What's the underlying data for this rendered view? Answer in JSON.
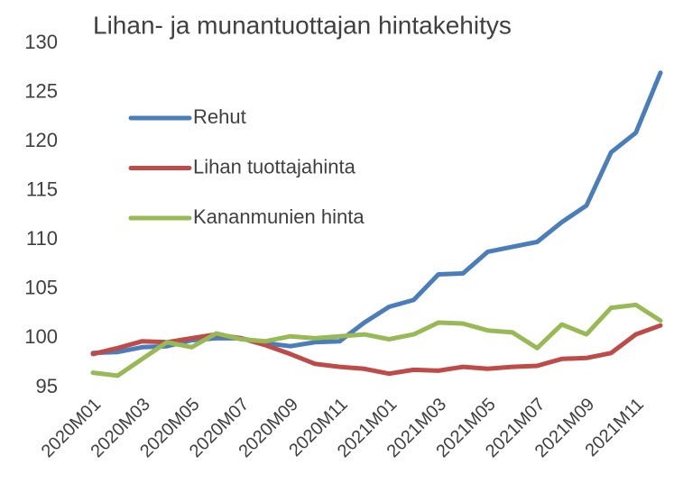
{
  "chart_data": {
    "type": "line",
    "title": "Lihan- ja munantuottajan hintakehitys",
    "categories": [
      "2020M01",
      null,
      "2020M03",
      null,
      "2020M05",
      null,
      "2020M07",
      null,
      "2020M09",
      null,
      "2020M11",
      null,
      "2021M01",
      null,
      "2021M03",
      null,
      "2021M05",
      null,
      "2021M07",
      null,
      "2021M09",
      null,
      "2021M11",
      null
    ],
    "series": [
      {
        "name": "Rehut",
        "color": "#4a7ebb",
        "values": [
          98.5,
          98.6,
          99.1,
          99.2,
          99.8,
          100.0,
          100.0,
          99.5,
          99.2,
          99.6,
          99.7,
          101.6,
          103.2,
          103.9,
          106.5,
          106.6,
          108.8,
          109.3,
          109.8,
          111.8,
          113.5,
          118.9,
          120.9,
          127.0
        ]
      },
      {
        "name": "Lihan tuottajahinta",
        "color": "#be4b48",
        "values": [
          98.4,
          99.0,
          99.7,
          99.6,
          100.0,
          100.4,
          100.0,
          99.3,
          98.4,
          97.4,
          97.1,
          96.9,
          96.4,
          96.8,
          96.7,
          97.1,
          96.9,
          97.1,
          97.2,
          97.9,
          98.0,
          98.5,
          100.4,
          101.3
        ]
      },
      {
        "name": "Kananmunien hinta",
        "color": "#98b954",
        "values": [
          96.5,
          96.2,
          97.9,
          99.6,
          99.1,
          100.5,
          99.9,
          99.7,
          100.2,
          100.0,
          100.2,
          100.4,
          99.9,
          100.4,
          101.6,
          101.5,
          100.8,
          100.6,
          99.0,
          101.4,
          100.4,
          103.1,
          103.4,
          101.8
        ]
      }
    ],
    "ylim": [
      95,
      130
    ],
    "yticks": [
      95,
      100,
      105,
      110,
      115,
      120,
      125,
      130
    ],
    "grid": false,
    "legend": "upper left"
  }
}
